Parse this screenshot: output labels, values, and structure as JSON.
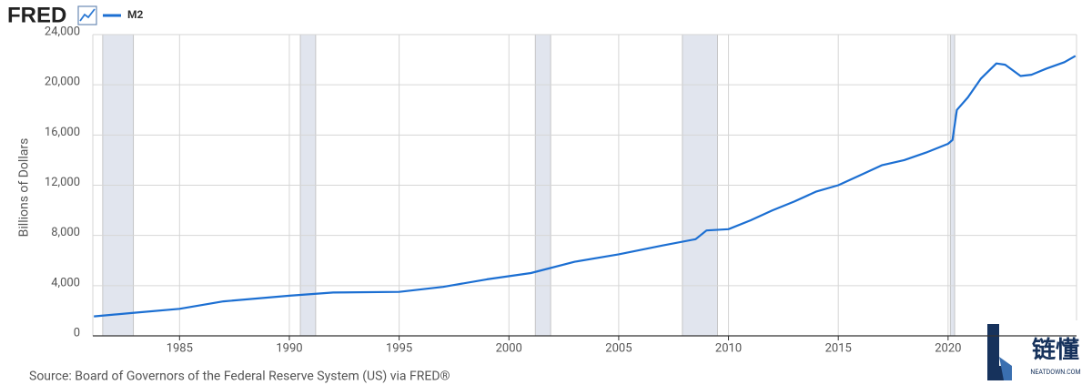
{
  "chart_data": {
    "type": "line",
    "logo": "FRED",
    "y_label": "Billions of Dollars",
    "source": "Source: Board of Governors of the Federal Reserve System (US) via FRED®",
    "watermark": {
      "text": "链懂",
      "url": "NEATDOWN.COM"
    },
    "x": [
      1981.1,
      1983.0,
      1985.0,
      1987.0,
      1990.0,
      1992.0,
      1995.0,
      1997.0,
      1999.0,
      2001.0,
      2003.0,
      2005.0,
      2007.0,
      2008.5,
      2009.0,
      2010.0,
      2011.0,
      2012.0,
      2013.0,
      2014.0,
      2015.0,
      2016.0,
      2017.0,
      2018.0,
      2019.0,
      2020.0,
      2020.2,
      2020.4,
      2020.9,
      2021.5,
      2022.2,
      2022.6,
      2023.3,
      2023.8,
      2024.5,
      2025.3,
      2025.8
    ],
    "series": [
      {
        "name": "M2",
        "color": "#1c6fd2",
        "values": [
          1550,
          1850,
          2150,
          2750,
          3200,
          3450,
          3500,
          3900,
          4500,
          5000,
          5900,
          6500,
          7200,
          7700,
          8400,
          8500,
          9200,
          10000,
          10700,
          11500,
          12000,
          12800,
          13600,
          14000,
          14600,
          15300,
          15600,
          18000,
          19000,
          20500,
          21700,
          21600,
          20700,
          20800,
          21300,
          21800,
          22300
        ]
      }
    ],
    "recessions": [
      [
        1981.5,
        1982.9
      ],
      [
        1990.5,
        1991.2
      ],
      [
        2001.2,
        2001.9
      ],
      [
        2007.9,
        2009.5
      ],
      [
        2020.1,
        2020.3
      ]
    ],
    "recession_color": "#e1e5ee",
    "xlim": [
      1981.05,
      2025.85
    ],
    "ylim": [
      0,
      24000
    ],
    "xticks": [
      1985,
      1990,
      1995,
      2000,
      2005,
      2010,
      2015,
      2020
    ],
    "yticks": [
      0,
      {
        "value": 4000,
        "label": "4,000"
      },
      {
        "value": 8000,
        "label": "8,000"
      },
      {
        "value": 12000,
        "label": "12,000"
      },
      {
        "value": 16000,
        "label": "16,000"
      },
      {
        "value": 20000,
        "label": "20,000"
      },
      {
        "value": 24000,
        "label": "24,000"
      }
    ],
    "grid": true
  }
}
